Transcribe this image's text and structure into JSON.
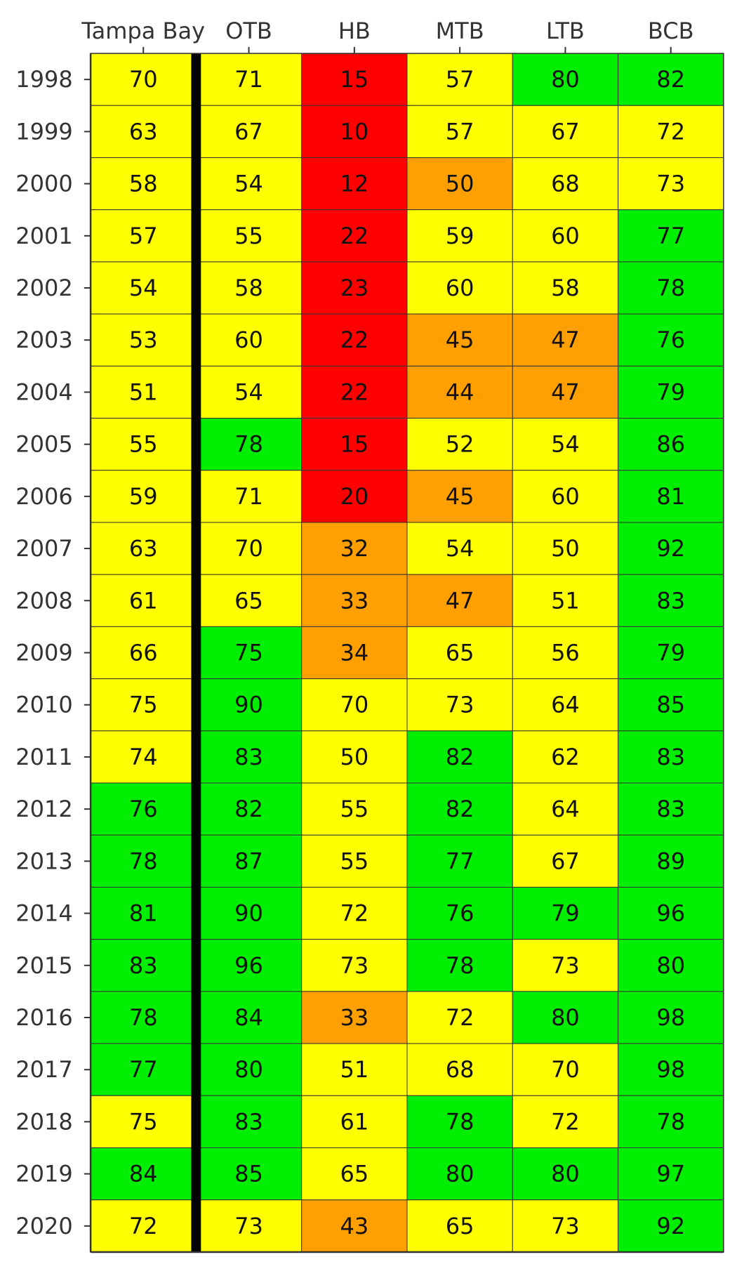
{
  "chart_data": {
    "type": "heatmap",
    "title": "",
    "xlabel": "",
    "ylabel": "",
    "legend": "none",
    "grid": false,
    "columns": [
      "Tampa Bay",
      "OTB",
      "HB",
      "MTB",
      "LTB",
      "BCB"
    ],
    "rows": [
      "1998",
      "1999",
      "2000",
      "2001",
      "2002",
      "2003",
      "2004",
      "2005",
      "2006",
      "2007",
      "2008",
      "2009",
      "2010",
      "2011",
      "2012",
      "2013",
      "2014",
      "2015",
      "2016",
      "2017",
      "2018",
      "2019",
      "2020"
    ],
    "values": [
      [
        70,
        71,
        15,
        57,
        80,
        82
      ],
      [
        63,
        67,
        10,
        57,
        67,
        72
      ],
      [
        58,
        54,
        12,
        50,
        68,
        73
      ],
      [
        57,
        55,
        22,
        59,
        60,
        77
      ],
      [
        54,
        58,
        23,
        60,
        58,
        78
      ],
      [
        53,
        60,
        22,
        45,
        47,
        76
      ],
      [
        51,
        54,
        22,
        44,
        47,
        79
      ],
      [
        55,
        78,
        15,
        52,
        54,
        86
      ],
      [
        59,
        71,
        20,
        45,
        60,
        81
      ],
      [
        63,
        70,
        32,
        54,
        50,
        92
      ],
      [
        61,
        65,
        33,
        47,
        51,
        83
      ],
      [
        66,
        75,
        34,
        65,
        56,
        79
      ],
      [
        75,
        90,
        70,
        73,
        64,
        85
      ],
      [
        74,
        83,
        50,
        82,
        62,
        83
      ],
      [
        76,
        82,
        55,
        82,
        64,
        83
      ],
      [
        78,
        87,
        55,
        77,
        67,
        89
      ],
      [
        81,
        90,
        72,
        76,
        79,
        96
      ],
      [
        83,
        96,
        73,
        78,
        73,
        80
      ],
      [
        78,
        84,
        33,
        72,
        80,
        98
      ],
      [
        77,
        80,
        51,
        68,
        70,
        98
      ],
      [
        75,
        83,
        61,
        78,
        72,
        78
      ],
      [
        84,
        85,
        65,
        80,
        80,
        97
      ],
      [
        72,
        73,
        43,
        65,
        73,
        92
      ]
    ],
    "categories": [
      [
        1,
        1,
        3,
        1,
        0,
        0
      ],
      [
        1,
        1,
        3,
        1,
        1,
        1
      ],
      [
        1,
        1,
        3,
        2,
        1,
        1
      ],
      [
        1,
        1,
        3,
        1,
        1,
        0
      ],
      [
        1,
        1,
        3,
        1,
        1,
        0
      ],
      [
        1,
        1,
        3,
        2,
        2,
        0
      ],
      [
        1,
        1,
        3,
        2,
        2,
        0
      ],
      [
        1,
        0,
        3,
        1,
        1,
        0
      ],
      [
        1,
        1,
        3,
        2,
        1,
        0
      ],
      [
        1,
        1,
        2,
        1,
        1,
        0
      ],
      [
        1,
        1,
        2,
        2,
        1,
        0
      ],
      [
        1,
        0,
        2,
        1,
        1,
        0
      ],
      [
        1,
        0,
        1,
        1,
        1,
        0
      ],
      [
        1,
        0,
        1,
        0,
        1,
        0
      ],
      [
        0,
        0,
        1,
        0,
        1,
        0
      ],
      [
        0,
        0,
        1,
        0,
        1,
        0
      ],
      [
        0,
        0,
        1,
        0,
        0,
        0
      ],
      [
        0,
        0,
        1,
        0,
        1,
        0
      ],
      [
        0,
        0,
        2,
        1,
        0,
        0
      ],
      [
        0,
        0,
        1,
        1,
        1,
        0
      ],
      [
        1,
        0,
        1,
        0,
        1,
        0
      ],
      [
        0,
        0,
        1,
        0,
        0,
        0
      ],
      [
        1,
        1,
        2,
        1,
        1,
        0
      ]
    ],
    "category_colors": [
      "#00ee00",
      "#ffff00",
      "#ffa000",
      "#ff0000"
    ],
    "separator_after_column": "Tampa Bay",
    "separator_color": "#000000"
  }
}
